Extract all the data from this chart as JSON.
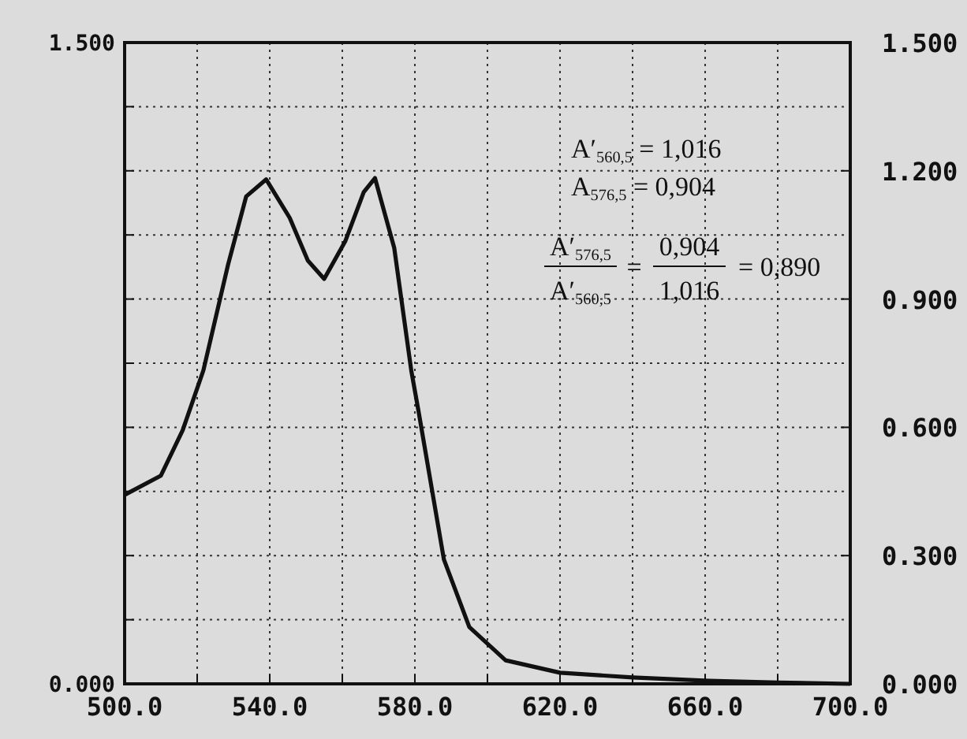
{
  "chart_data": {
    "type": "line",
    "x": [
      500,
      510,
      516,
      521.7,
      528.5,
      533.5,
      539,
      545.5,
      550.5,
      555,
      560.8,
      565.9,
      569,
      574.3,
      579,
      581,
      588,
      595,
      605,
      620,
      640,
      661,
      680,
      700
    ],
    "series": [
      {
        "color": "#111111",
        "values": [
          0.442,
          0.487,
          0.593,
          0.733,
          0.98,
          1.14,
          1.18,
          1.09,
          0.99,
          0.947,
          1.035,
          1.15,
          1.183,
          1.02,
          0.733,
          0.638,
          0.291,
          0.133,
          0.055,
          0.026,
          0.015,
          0.007,
          0.003,
          0.0
        ]
      }
    ],
    "xlim": [
      500,
      700
    ],
    "xticks": [
      {
        "value": 500,
        "label": "500.0"
      },
      {
        "value": 520,
        "label": null
      },
      {
        "value": 540,
        "label": "540.0"
      },
      {
        "value": 560,
        "label": null
      },
      {
        "value": 580,
        "label": "580.0"
      },
      {
        "value": 600,
        "label": null
      },
      {
        "value": 620,
        "label": "620.0"
      },
      {
        "value": 640,
        "label": null
      },
      {
        "value": 660,
        "label": "660.0"
      },
      {
        "value": 680,
        "label": null
      },
      {
        "value": 700,
        "label": "700.0"
      }
    ],
    "ylim": [
      0,
      1.5
    ],
    "yticks": [
      {
        "value": 0,
        "label": "0.000"
      },
      {
        "value": 0.15,
        "label": null
      },
      {
        "value": 0.3,
        "label": null
      },
      {
        "value": 0.45,
        "label": null
      },
      {
        "value": 0.6,
        "label": null
      },
      {
        "value": 0.75,
        "label": null
      },
      {
        "value": 0.9,
        "label": null
      },
      {
        "value": 1.05,
        "label": null
      },
      {
        "value": 1.2,
        "label": null
      },
      {
        "value": 1.35,
        "label": null
      },
      {
        "value": 1.5,
        "label": "1.500"
      }
    ],
    "y2lim": [
      0,
      1.5
    ],
    "y2ticks": [
      {
        "value": 0,
        "label": "0.000"
      },
      {
        "value": 0.3,
        "label": "0.300"
      },
      {
        "value": 0.6,
        "label": "0.600"
      },
      {
        "value": 0.9,
        "label": "0.900"
      },
      {
        "value": 1.2,
        "label": "1.200"
      },
      {
        "value": 1.5,
        "label": "1.500"
      }
    ],
    "grid": true,
    "line_style": "solid",
    "annotations": [
      "A′$_{560,5}$ = 1,016",
      "A$_{576,5}$ = 0,904",
      "A′$_{576,5}$",
      "A′$_{560,5}$",
      "=",
      "0,904",
      "1,016",
      "= 0,890"
    ]
  }
}
